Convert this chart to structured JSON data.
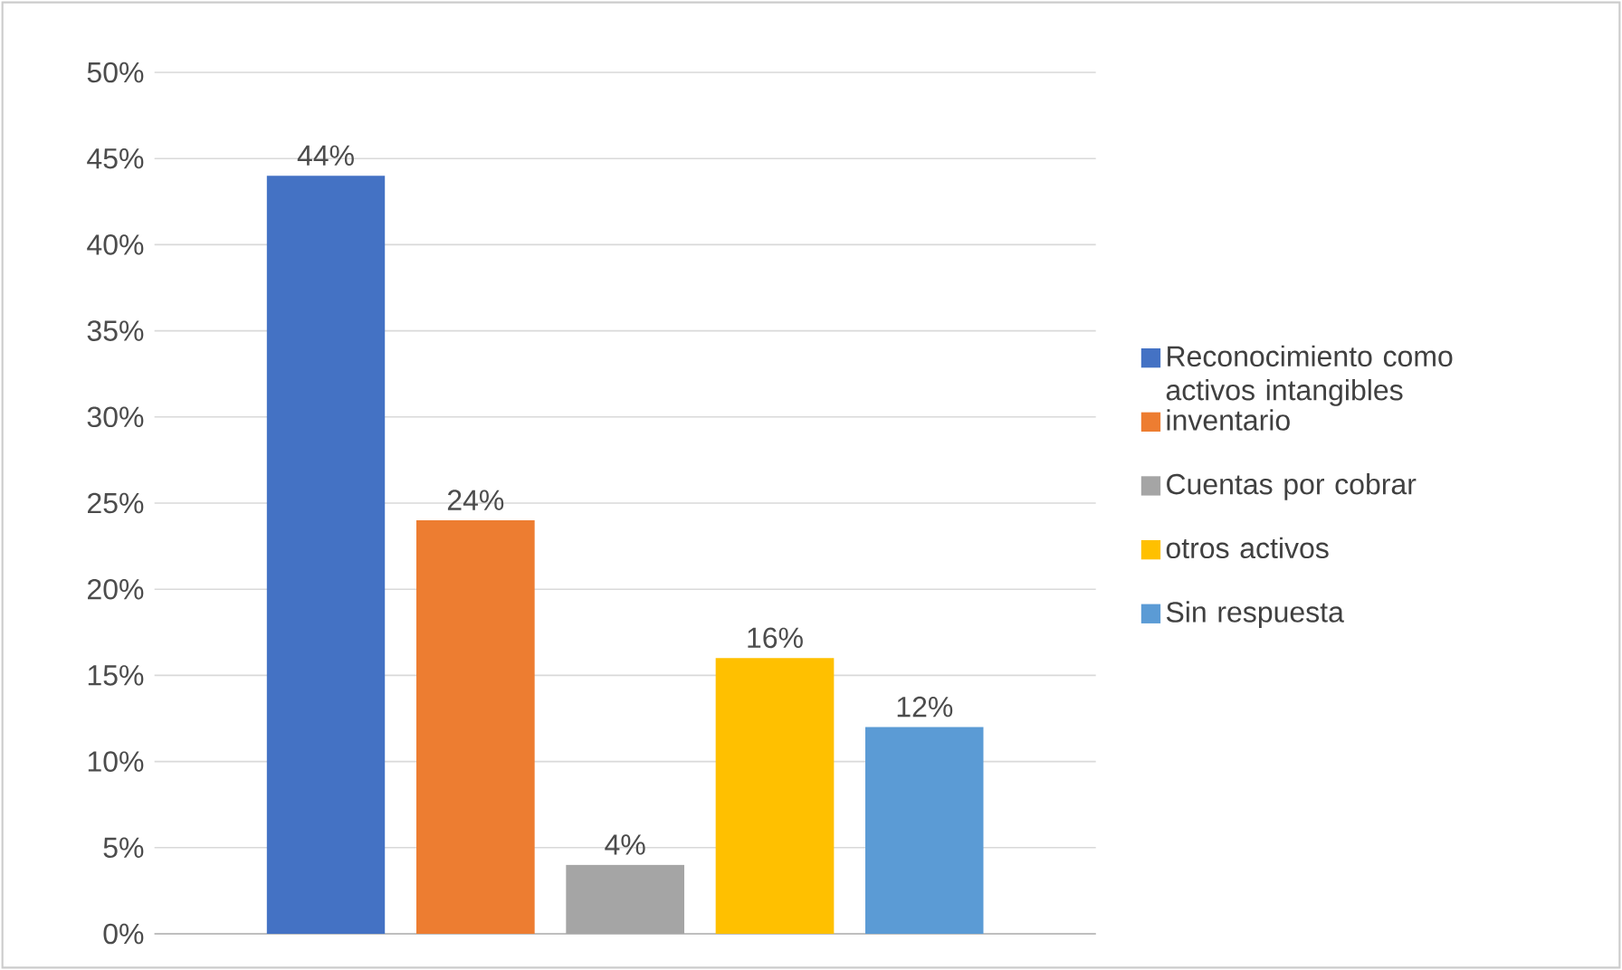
{
  "chart_data": {
    "type": "bar",
    "categories": [
      null
    ],
    "series": [
      {
        "name": "Reconocimiento como activos intangibles",
        "color": "#4472c4",
        "values": [
          44
        ],
        "value_labels": [
          "44%"
        ]
      },
      {
        "name": "inventario",
        "color": "#ed7d31",
        "values": [
          24
        ],
        "value_labels": [
          "24%"
        ]
      },
      {
        "name": "Cuentas por cobrar",
        "color": "#a5a5a5",
        "values": [
          4
        ],
        "value_labels": [
          "4%"
        ]
      },
      {
        "name": "otros activos",
        "color": "#ffc000",
        "values": [
          16
        ],
        "value_labels": [
          "16%"
        ]
      },
      {
        "name": "Sin respuesta",
        "color": "#5b9bd5",
        "values": [
          12
        ],
        "value_labels": [
          "12%"
        ]
      }
    ],
    "ylim": [
      0,
      50
    ],
    "yticks": [
      {
        "value": 0,
        "label": "0%"
      },
      {
        "value": 5,
        "label": "5%"
      },
      {
        "value": 10,
        "label": "10%"
      },
      {
        "value": 15,
        "label": "15%"
      },
      {
        "value": 20,
        "label": "20%"
      },
      {
        "value": 25,
        "label": "25%"
      },
      {
        "value": 30,
        "label": "30%"
      },
      {
        "value": 35,
        "label": "35%"
      },
      {
        "value": 40,
        "label": "40%"
      },
      {
        "value": 45,
        "label": "45%"
      },
      {
        "value": 50,
        "label": "50%"
      }
    ],
    "grid": "y",
    "legend": "right"
  }
}
